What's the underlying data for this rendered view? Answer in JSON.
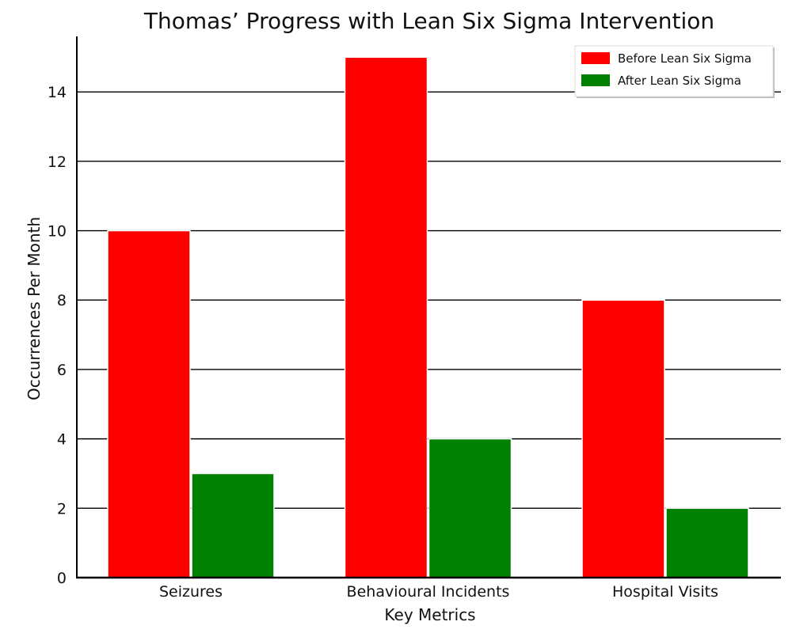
{
  "chart_data": {
    "type": "bar",
    "title": "Thomas’ Progress with Lean Six Sigma Intervention",
    "xlabel": "Key Metrics",
    "ylabel": "Occurrences Per Month",
    "categories": [
      "Seizures",
      "Behavioural Incidents",
      "Hospital Visits"
    ],
    "series": [
      {
        "name": "Before Lean Six Sigma",
        "color": "#ff0000",
        "values": [
          10,
          15,
          8
        ]
      },
      {
        "name": "After Lean Six Sigma",
        "color": "#008000",
        "values": [
          3,
          4,
          2
        ]
      }
    ],
    "ylim": [
      0,
      15.6
    ],
    "yticks": [
      0,
      2,
      4,
      6,
      8,
      10,
      12,
      14
    ],
    "grid": "horizontal",
    "legend_position": "top-right"
  }
}
